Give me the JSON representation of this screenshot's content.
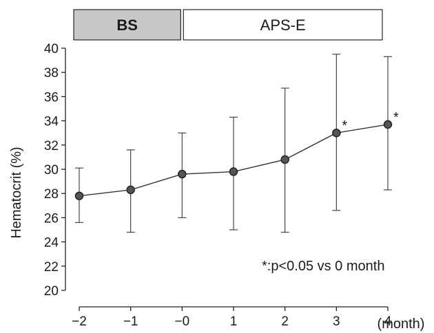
{
  "chart_data": {
    "type": "line",
    "xlabel": "(month)",
    "ylabel": "Hematocrit (%)",
    "ylim": [
      20,
      40
    ],
    "y_ticks": [
      20,
      22,
      24,
      26,
      28,
      30,
      32,
      34,
      36,
      38,
      40
    ],
    "x_ticks": [
      "-2",
      "-1",
      "-0",
      "1",
      "2",
      "3",
      "4"
    ],
    "grid": false,
    "phases": [
      {
        "label": "BS",
        "from": "-2",
        "to": "-0",
        "fill": "#c8c8c8"
      },
      {
        "label": "APS-E",
        "from": "-0",
        "to": "4",
        "fill": "#ffffff"
      }
    ],
    "series": [
      {
        "x": [
          "-2",
          "-1",
          "-0",
          "1",
          "2",
          "3",
          "4"
        ],
        "values": [
          27.8,
          28.3,
          29.6,
          29.8,
          30.8,
          33.0,
          33.7
        ],
        "err_low": [
          25.6,
          24.8,
          26.0,
          25.0,
          24.8,
          26.6,
          28.3
        ],
        "err_high": [
          30.1,
          31.6,
          33.0,
          34.3,
          36.7,
          39.5,
          39.3
        ],
        "significant": [
          false,
          false,
          false,
          false,
          false,
          true,
          true
        ]
      }
    ],
    "significance_symbol": "*",
    "annotation": "*:p<0.05 vs 0 month"
  }
}
